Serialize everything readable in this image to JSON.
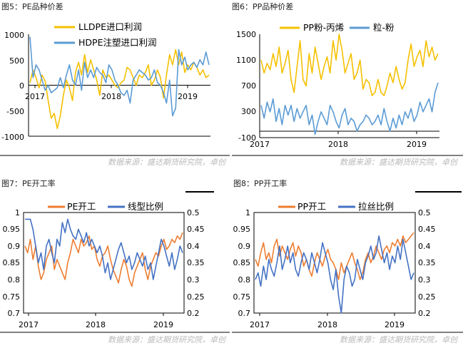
{
  "source_text": "数据来源：盛达期货研究院，卓创",
  "colors": {
    "yellow": "#F5C000",
    "blue": "#5B9BD5",
    "orange": "#ED7D31",
    "frame": "#000000"
  },
  "chart_data": [
    {
      "id": "pe-spread",
      "type": "line",
      "title": "图5：PE品种价差",
      "x_ticks": [
        "2017",
        "2018",
        "2019"
      ],
      "x_range": [
        "2017-01",
        "2019-04"
      ],
      "ylim": [
        -1000,
        1000
      ],
      "y_ticks": [
        "1000",
        "500",
        "0",
        "-500",
        "-1000"
      ],
      "legend_position": "top",
      "series": [
        {
          "name": "LLDPE进口利润",
          "color": "#F5C000",
          "values": [
            50,
            300,
            150,
            -50,
            200,
            80,
            -300,
            -650,
            -550,
            -850,
            -600,
            -200,
            100,
            -50,
            -300,
            250,
            450,
            200,
            600,
            250,
            500,
            300,
            100,
            -200,
            300,
            150,
            200,
            100,
            0,
            -50,
            50,
            100,
            350,
            300,
            150,
            0,
            200,
            150,
            250,
            400,
            0,
            100,
            300,
            150,
            -250,
            200,
            600,
            400,
            700,
            400,
            650,
            250,
            400,
            300,
            450,
            350,
            200,
            300,
            150,
            200
          ]
        },
        {
          "name": "HDPE注塑进口利润",
          "color": "#5B9BD5",
          "values": [
            950,
            150,
            400,
            300,
            100,
            -100,
            0,
            -150,
            -100,
            -50,
            150,
            -50,
            200,
            400,
            100,
            0,
            300,
            -100,
            450,
            150,
            300,
            150,
            350,
            250,
            200,
            50,
            400,
            300,
            100,
            0,
            -150,
            -200,
            -100,
            -350,
            100,
            200,
            300,
            250,
            200,
            100,
            150,
            300,
            50,
            0,
            -150,
            -350,
            100,
            -600,
            -450,
            700,
            400,
            550,
            300,
            400,
            450,
            350,
            500,
            400,
            650,
            400
          ]
        }
      ]
    },
    {
      "id": "pp-spread",
      "type": "line",
      "title": "图6：PP品种价差",
      "x_ticks": [
        "2017",
        "2018",
        "2019"
      ],
      "x_range": [
        "2017-01",
        "2019-04"
      ],
      "ylim": [
        -100,
        1500
      ],
      "y_ticks": [
        "1500",
        "1100",
        "700",
        "300",
        "-100"
      ],
      "legend_position": "top",
      "series": [
        {
          "name": "PP粉-丙烯",
          "color": "#F5C000",
          "values": [
            1100,
            900,
            1050,
            950,
            1200,
            1000,
            1300,
            900,
            1050,
            1250,
            800,
            600,
            1000,
            1400,
            800,
            700,
            1200,
            900,
            1300,
            1050,
            800,
            1000,
            1150,
            900,
            1400,
            1100,
            1500,
            1250,
            900,
            1050,
            1200,
            800,
            900,
            1100,
            650,
            800,
            750,
            550,
            600,
            800,
            600,
            550,
            700,
            900,
            750,
            1000,
            800,
            650,
            750,
            1100,
            1350,
            1000,
            1150,
            1250,
            1000,
            1400,
            1150,
            1300,
            1100,
            1200
          ]
        },
        {
          "name": "粒-粉",
          "color": "#5B9BD5",
          "values": [
            400,
            200,
            450,
            300,
            500,
            150,
            350,
            100,
            400,
            250,
            400,
            150,
            350,
            200,
            300,
            400,
            100,
            250,
            -50,
            150,
            300,
            200,
            100,
            400,
            300,
            150,
            50,
            250,
            350,
            100,
            200,
            150,
            0,
            100,
            150,
            250,
            200,
            100,
            150,
            250,
            100,
            350,
            150,
            0,
            200,
            50,
            250,
            100,
            300,
            200,
            350,
            150,
            250,
            450,
            300,
            400,
            500,
            300,
            600,
            750
          ]
        }
      ]
    },
    {
      "id": "pe-operating",
      "type": "line",
      "title": "图7：PE开工率",
      "x_ticks": [
        "2017",
        "2018",
        "2019"
      ],
      "x_range": [
        "2017-01",
        "2019-04"
      ],
      "ylim": [
        0.7,
        1.0
      ],
      "y_ticks": [
        "1",
        "0.95",
        "0.9",
        "0.85",
        "0.8",
        "0.75",
        "0.7"
      ],
      "y2lim": [
        0.2,
        0.5
      ],
      "y2_ticks": [
        "0.5",
        "0.45",
        "0.4",
        "0.35",
        "0.3",
        "0.25",
        "0.2"
      ],
      "legend_position": "top",
      "series": [
        {
          "name": "PE开工",
          "color": "#ED7D31",
          "axis": "left",
          "values": [
            0.9,
            0.88,
            0.92,
            0.86,
            0.9,
            0.84,
            0.8,
            0.82,
            0.86,
            0.88,
            0.9,
            0.83,
            0.86,
            0.84,
            0.82,
            0.8,
            0.85,
            0.88,
            0.92,
            0.9,
            0.88,
            0.92,
            0.9,
            0.91,
            0.93,
            0.89,
            0.9,
            0.86,
            0.84,
            0.87,
            0.88,
            0.9,
            0.86,
            0.83,
            0.81,
            0.79,
            0.83,
            0.86,
            0.84,
            0.8,
            0.78,
            0.82,
            0.84,
            0.86,
            0.88,
            0.83,
            0.8,
            0.84,
            0.86,
            0.88,
            0.87,
            0.9,
            0.92,
            0.89,
            0.9,
            0.92,
            0.91,
            0.93,
            0.92,
            0.94
          ]
        },
        {
          "name": "线型比例",
          "color": "#4472C4",
          "axis": "right",
          "values": [
            0.48,
            0.48,
            0.48,
            0.45,
            0.4,
            0.35,
            0.38,
            0.33,
            0.4,
            0.42,
            0.38,
            0.35,
            0.42,
            0.4,
            0.47,
            0.44,
            0.48,
            0.45,
            0.43,
            0.42,
            0.45,
            0.43,
            0.41,
            0.44,
            0.4,
            0.42,
            0.4,
            0.38,
            0.4,
            0.37,
            0.32,
            0.35,
            0.3,
            0.33,
            0.36,
            0.39,
            0.41,
            0.38,
            0.35,
            0.37,
            0.33,
            0.35,
            0.38,
            0.36,
            0.34,
            0.37,
            0.33,
            0.35,
            0.3,
            0.34,
            0.38,
            0.42,
            0.4,
            0.37,
            0.34,
            0.38,
            0.33,
            0.36,
            0.4,
            0.38
          ]
        }
      ]
    },
    {
      "id": "pp-operating",
      "type": "line",
      "title": "图8：PP开工率",
      "x_ticks": [
        "2017",
        "2018",
        "2019"
      ],
      "x_range": [
        "2017-01",
        "2019-04"
      ],
      "ylim": [
        0.7,
        1.0
      ],
      "y_ticks": [
        "1",
        "0.95",
        "0.9",
        "0.85",
        "0.8",
        "0.75",
        "0.7"
      ],
      "y2lim": [
        0.2,
        0.5
      ],
      "y2_ticks": [
        "0.5",
        "0.45",
        "0.4",
        "0.35",
        "0.3",
        "0.25",
        "0.2"
      ],
      "legend_position": "top",
      "series": [
        {
          "name": "PP开工",
          "color": "#ED7D31",
          "axis": "left",
          "values": [
            0.86,
            0.84,
            0.88,
            0.91,
            0.86,
            0.88,
            0.85,
            0.9,
            0.92,
            0.87,
            0.9,
            0.88,
            0.86,
            0.89,
            0.91,
            0.87,
            0.9,
            0.88,
            0.84,
            0.86,
            0.83,
            0.81,
            0.85,
            0.88,
            0.86,
            0.84,
            0.87,
            0.89,
            0.86,
            0.85,
            0.83,
            0.8,
            0.85,
            0.82,
            0.84,
            0.86,
            0.88,
            0.85,
            0.83,
            0.8,
            0.82,
            0.86,
            0.88,
            0.85,
            0.87,
            0.9,
            0.88,
            0.86,
            0.89,
            0.9,
            0.88,
            0.91,
            0.9,
            0.92,
            0.9,
            0.93,
            0.91,
            0.92,
            0.93,
            0.94
          ]
        },
        {
          "name": "拉丝比例",
          "color": "#4472C4",
          "axis": "right",
          "values": [
            0.3,
            0.32,
            0.28,
            0.34,
            0.3,
            0.36,
            0.33,
            0.31,
            0.35,
            0.4,
            0.33,
            0.36,
            0.4,
            0.35,
            0.38,
            0.33,
            0.31,
            0.35,
            0.38,
            0.36,
            0.33,
            0.38,
            0.35,
            0.32,
            0.36,
            0.41,
            0.38,
            0.35,
            0.3,
            0.27,
            0.33,
            0.25,
            0.2,
            0.3,
            0.34,
            0.32,
            0.28,
            0.3,
            0.36,
            0.33,
            0.3,
            0.35,
            0.37,
            0.4,
            0.36,
            0.38,
            0.43,
            0.39,
            0.35,
            0.38,
            0.33,
            0.37,
            0.35,
            0.4,
            0.36,
            0.42,
            0.38,
            0.34,
            0.3,
            0.32
          ]
        }
      ]
    }
  ]
}
